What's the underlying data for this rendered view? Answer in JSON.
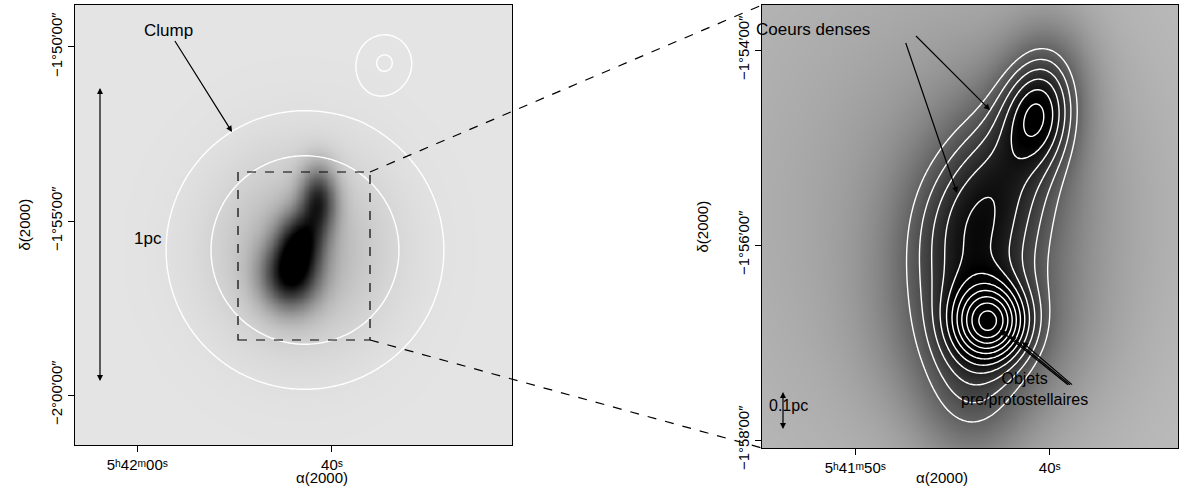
{
  "chart_data": [
    {
      "type": "heatmap",
      "x_label": "α(2000)",
      "y_label": "δ(2000)",
      "xlim": [
        20526.4,
        20481.5
      ],
      "ylim": [
        -7286.2,
        -6527.6
      ],
      "xticks": [
        {
          "value": 20520,
          "label": "5ʰ42ᵐ00ˢ"
        },
        {
          "value": 20500,
          "label": "40ˢ"
        }
      ],
      "yticks": [
        {
          "value": -6600,
          "label": "−1°50′00″"
        },
        {
          "value": -6900,
          "label": "−1°55′00″"
        },
        {
          "value": -7200,
          "label": "−2°00′00″"
        }
      ],
      "grid": false,
      "zlim": [
        0,
        1.1
      ],
      "image_components": [
        {
          "ra": 20504.31,
          "dec": -6993.1,
          "sigma_ra": 2.0,
          "sigma_dec": 40,
          "amplitude": 0.9
        },
        {
          "ra": 20503.28,
          "dec": -6932.8,
          "sigma_ra": 1.6,
          "sigma_dec": 35,
          "amplitude": 0.7
        },
        {
          "ra": 20501.44,
          "dec": -6863.8,
          "sigma_ra": 1.3,
          "sigma_dec": 40,
          "amplitude": 0.75
        },
        {
          "ra": 20503.28,
          "dec": -6950.0,
          "sigma_ra": 6.0,
          "sigma_dec": 110,
          "amplitude": 0.25
        }
      ],
      "contour_components": [
        {
          "ra": 20502.77,
          "dec": -6950.0,
          "sigma_ra": 8.2,
          "sigma_dec": 138,
          "amplitude": 1.0
        },
        {
          "ra": 20494.56,
          "dec": -6625.9,
          "sigma_ra": 2.0,
          "sigma_dec": 35,
          "amplitude": 0.5
        }
      ],
      "contour_levels": [
        0.22,
        0.5
      ],
      "annotations": [
        "Clump",
        "1pc"
      ]
    },
    {
      "type": "heatmap",
      "x_label": "α(2000)",
      "y_label": "δ(2000)",
      "xlim": [
        20514.8,
        20493.4
      ],
      "ylim": [
        -7084.9,
        -6812.3
      ],
      "xticks": [
        {
          "value": 20510,
          "label": "5ʰ41ᵐ50ˢ"
        },
        {
          "value": 20500,
          "label": "40ˢ"
        }
      ],
      "yticks": [
        {
          "value": -6840,
          "label": "−1°54′00″"
        },
        {
          "value": -6960,
          "label": "−1°56′00″"
        },
        {
          "value": -7080,
          "label": "−1°58′00″"
        }
      ],
      "grid": false,
      "zlim": [
        0,
        1.2
      ],
      "image_components": [
        {
          "ra": 20503.08,
          "dec": -7007.4,
          "sigma_ra": 1.3,
          "sigma_dec": 16,
          "amplitude": 1.0
        },
        {
          "ra": 20503.59,
          "dec": -7012.3,
          "sigma_ra": 3.0,
          "sigma_dec": 40,
          "amplitude": 0.5
        },
        {
          "ra": 20504.1,
          "dec": -7058.5,
          "sigma_ra": 1.8,
          "sigma_dec": 30,
          "amplitude": 0.25
        },
        {
          "ra": 20504.36,
          "dec": -6950.8,
          "sigma_ra": 2.2,
          "sigma_dec": 35,
          "amplitude": 0.45
        },
        {
          "ra": 20500.62,
          "dec": -6880.0,
          "sigma_ra": 1.3,
          "sigma_dec": 22,
          "amplitude": 0.6
        },
        {
          "ra": 20502.05,
          "dec": -6910.8,
          "sigma_ra": 2.2,
          "sigma_dec": 35,
          "amplitude": 0.45
        },
        {
          "ra": 20500.0,
          "dec": -6852.3,
          "sigma_ra": 1.5,
          "sigma_dec": 25,
          "amplitude": 0.3
        },
        {
          "ra": 20503.08,
          "dec": -6944.6,
          "sigma_ra": 5.0,
          "sigma_dec": 80,
          "amplitude": 0.25
        },
        {
          "ra": 20507.7,
          "dec": -6932.0,
          "sigma_ra": 12.0,
          "sigma_dec": 180,
          "amplitude": 0.15
        }
      ],
      "contour_levels": [
        0.6,
        0.73,
        0.86,
        0.99,
        1.12,
        1.25,
        1.38,
        1.51,
        1.64,
        1.77,
        1.9
      ],
      "annotations": [
        "Coeurs denses",
        "Objets pre/protostellaires",
        "0.1pc"
      ]
    }
  ]
}
